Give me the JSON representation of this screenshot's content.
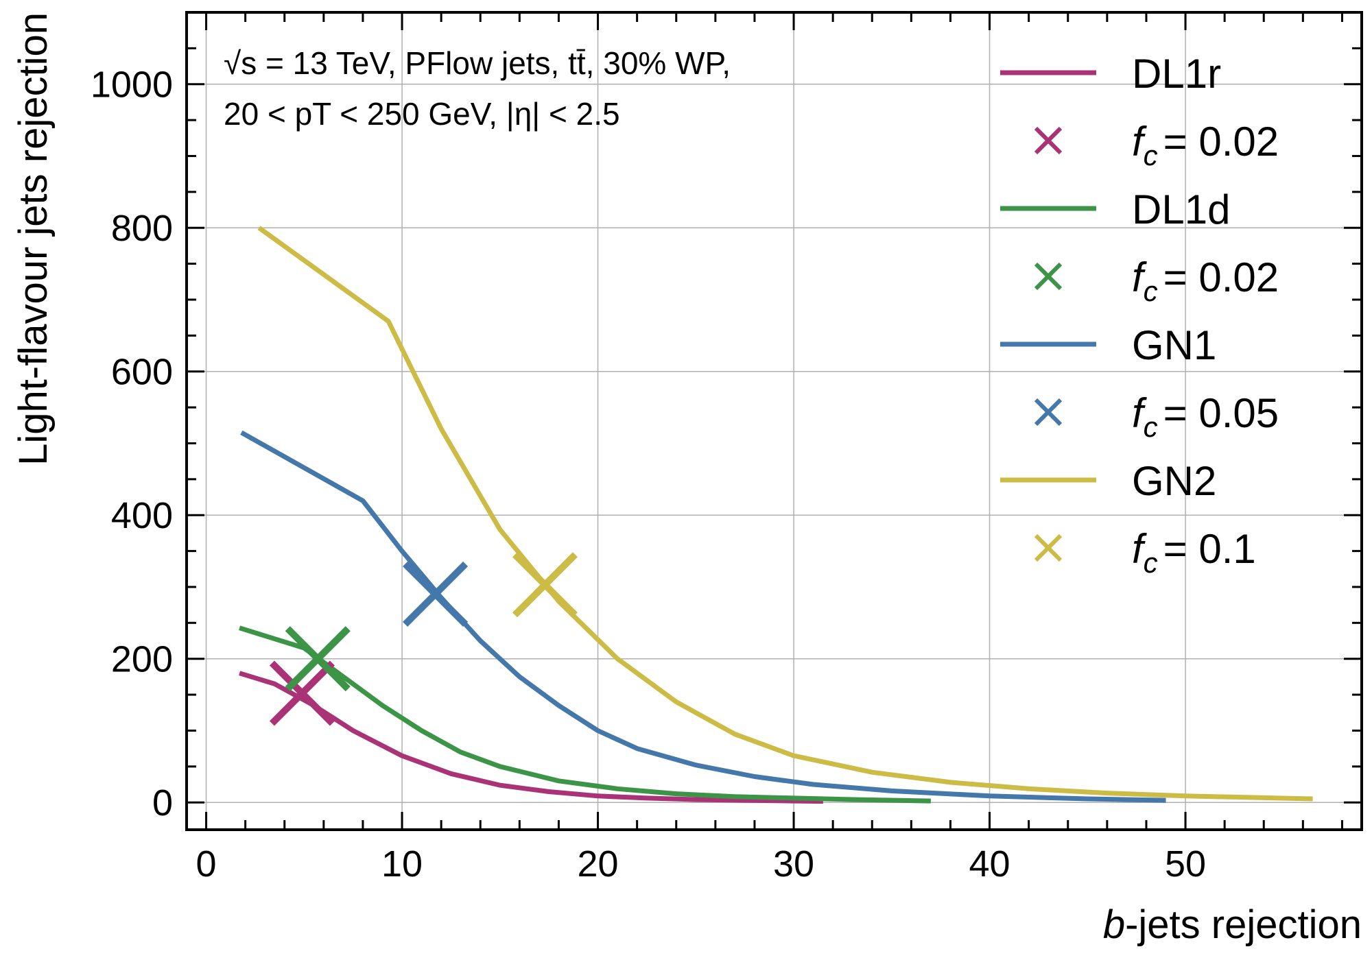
{
  "chart_data": {
    "type": "line",
    "xlabel": "b-jets rejection",
    "ylabel": "Light-flavour jets rejection",
    "xlim": [
      -1,
      59
    ],
    "ylim": [
      -38,
      1100
    ],
    "x_ticks": [
      0,
      10,
      20,
      30,
      40,
      50
    ],
    "y_ticks": [
      0,
      200,
      400,
      600,
      800,
      1000
    ],
    "grid": true,
    "legend_position": "top-right",
    "annotation_lines": [
      "√s = 13 TeV, PFlow jets, tt̄, 30% WP,",
      "20 < pT < 250 GeV, |η| < 2.5"
    ],
    "series": [
      {
        "name": "DL1r",
        "color": "#AA3377",
        "x": [
          1.7,
          3.5,
          5.5,
          7.5,
          10,
          12.5,
          15,
          17.5,
          20,
          22.5,
          25,
          27.5,
          30,
          31.5
        ],
        "y": [
          180,
          165,
          135,
          100,
          65,
          40,
          24,
          15,
          9,
          6,
          4,
          3,
          2,
          1.5
        ]
      },
      {
        "name": "DL1d",
        "color": "#3C9447",
        "x": [
          1.7,
          5,
          7,
          9,
          11,
          13,
          15,
          18,
          21,
          24,
          27,
          30,
          33,
          37
        ],
        "y": [
          243,
          215,
          175,
          135,
          100,
          70,
          50,
          30,
          19,
          12,
          8,
          6,
          4,
          2
        ]
      },
      {
        "name": "GN1",
        "color": "#4477AA",
        "x": [
          1.8,
          8,
          10,
          12,
          14,
          16,
          18,
          20,
          22,
          25,
          28,
          31,
          35,
          40,
          45,
          49
        ],
        "y": [
          515,
          420,
          350,
          285,
          225,
          175,
          135,
          100,
          75,
          52,
          36,
          25,
          16,
          9,
          5,
          3
        ]
      },
      {
        "name": "GN2",
        "color": "#CCBB44",
        "x": [
          2.7,
          9.3,
          12,
          15,
          18,
          21,
          24,
          27,
          30,
          34,
          38,
          42,
          46,
          50,
          56.5
        ],
        "y": [
          800,
          670,
          520,
          380,
          280,
          200,
          140,
          95,
          65,
          42,
          28,
          19,
          13,
          9,
          5
        ]
      }
    ],
    "markers": [
      {
        "name": "f_c = 0.02",
        "subscript": "c",
        "value_text": "= 0.02",
        "color": "#AA3377",
        "x": 4.9,
        "y": 152
      },
      {
        "name": "f_c = 0.02",
        "subscript": "c",
        "value_text": "= 0.02",
        "color": "#3C9447",
        "x": 5.7,
        "y": 200
      },
      {
        "name": "f_c = 0.05",
        "subscript": "c",
        "value_text": "= 0.05",
        "color": "#4477AA",
        "x": 11.7,
        "y": 290
      },
      {
        "name": "f_c = 0.1",
        "subscript": "c",
        "value_text": "= 0.1",
        "color": "#CCBB44",
        "x": 17.3,
        "y": 303
      }
    ]
  }
}
